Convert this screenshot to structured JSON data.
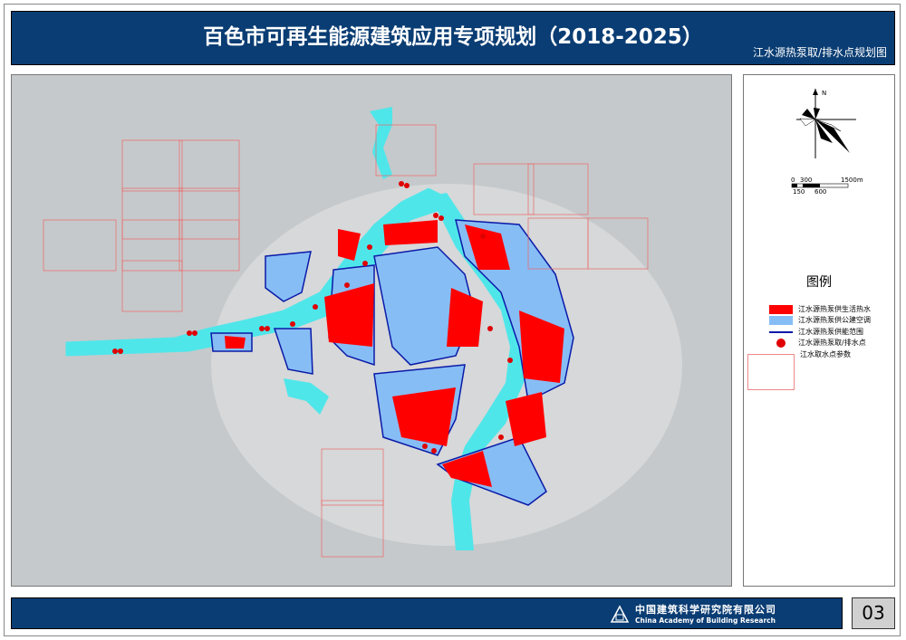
{
  "header": {
    "title": "百色市可再生能源建筑应用专项规划（2018-2025）",
    "subtitle": "江水源热泵取/排水点规划图"
  },
  "compass": {
    "north_label": "N"
  },
  "scale_bar": {
    "top_labels": [
      "0",
      "300",
      "1500m"
    ],
    "bottom_labels": [
      "150",
      "600"
    ]
  },
  "legend": {
    "title": "图例",
    "items": [
      {
        "label": "江水源热泵供生活热水",
        "color": "#ff0000"
      },
      {
        "label": "江水源热泵供公建空调",
        "color": "#87bdf5"
      },
      {
        "label": "江水源热泵供能范围",
        "color": "#0000cc"
      },
      {
        "label": "江水源热泵取/排水点",
        "color": "#e00000"
      },
      {
        "label": "江水取水点参数"
      }
    ]
  },
  "colors": {
    "river": "#4fe6ea",
    "hot_water": "#ff0000",
    "ac": "#87bdf5",
    "boundary": "#0a1aa8",
    "banner": "#0a3d73"
  },
  "footer": {
    "org_cn": "中国建筑科学研究院有限公司",
    "org_en": "China Academy of Building Research",
    "page_number": "03"
  }
}
